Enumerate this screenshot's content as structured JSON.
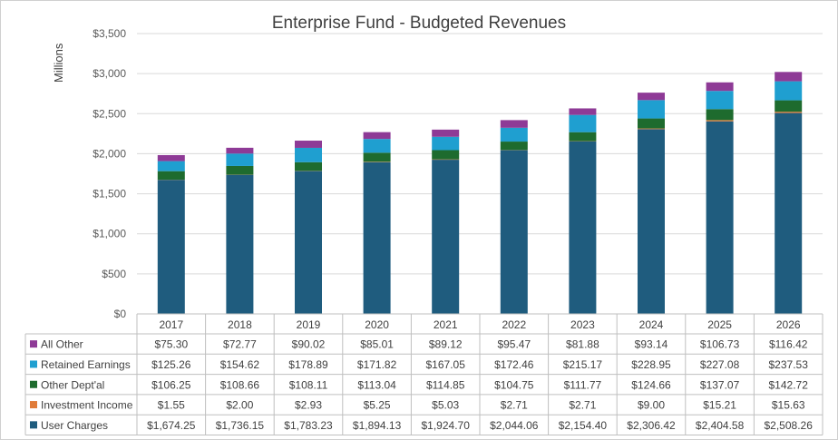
{
  "chart_data": {
    "type": "bar",
    "stacked": true,
    "title": "Enterprise Fund - Budgeted Revenues",
    "ylabel": "Millions",
    "ylim": [
      0,
      3500
    ],
    "yticks": [
      "$0",
      "$500",
      "$1,000",
      "$1,500",
      "$2,000",
      "$2,500",
      "$3,000",
      "$3,500"
    ],
    "ytick_values": [
      0,
      500,
      1000,
      1500,
      2000,
      2500,
      3000,
      3500
    ],
    "categories": [
      "2017",
      "2018",
      "2019",
      "2020",
      "2021",
      "2022",
      "2023",
      "2024",
      "2025",
      "2026"
    ],
    "legend_position": "data-table-left",
    "series": [
      {
        "name": "User Charges",
        "color": "#1f5c7e",
        "values": [
          1674.25,
          1736.15,
          1783.23,
          1894.13,
          1924.7,
          2044.06,
          2154.4,
          2306.42,
          2404.58,
          2508.26
        ],
        "labels": [
          "$1,674.25",
          "$1,736.15",
          "$1,783.23",
          "$1,894.13",
          "$1,924.70",
          "$2,044.06",
          "$2,154.40",
          "$2,306.42",
          "$2,404.58",
          "$2,508.26"
        ]
      },
      {
        "name": "Investment Income",
        "color": "#e07b39",
        "values": [
          1.55,
          2.0,
          2.93,
          5.25,
          5.03,
          2.71,
          2.71,
          9.0,
          15.21,
          15.63
        ],
        "labels": [
          "$1.55",
          "$2.00",
          "$2.93",
          "$5.25",
          "$5.03",
          "$2.71",
          "$2.71",
          "$9.00",
          "$15.21",
          "$15.63"
        ]
      },
      {
        "name": "Other Dept'al",
        "color": "#1e6b2e",
        "values": [
          106.25,
          108.66,
          108.11,
          113.04,
          114.85,
          104.75,
          111.77,
          124.66,
          137.07,
          142.72
        ],
        "labels": [
          "$106.25",
          "$108.66",
          "$108.11",
          "$113.04",
          "$114.85",
          "$104.75",
          "$111.77",
          "$124.66",
          "$137.07",
          "$142.72"
        ]
      },
      {
        "name": "Retained Earnings",
        "color": "#1f9fd0",
        "values": [
          125.26,
          154.62,
          178.89,
          171.82,
          167.05,
          172.46,
          215.17,
          228.95,
          227.08,
          237.53
        ],
        "labels": [
          "$125.26",
          "$154.62",
          "$178.89",
          "$171.82",
          "$167.05",
          "$172.46",
          "$215.17",
          "$228.95",
          "$227.08",
          "$237.53"
        ]
      },
      {
        "name": "All Other",
        "color": "#8e3a96",
        "values": [
          75.3,
          72.77,
          90.02,
          85.01,
          89.12,
          95.47,
          81.88,
          93.14,
          106.73,
          116.42
        ],
        "labels": [
          "$75.30",
          "$72.77",
          "$90.02",
          "$85.01",
          "$89.12",
          "$95.47",
          "$81.88",
          "$93.14",
          "$106.73",
          "$116.42"
        ]
      }
    ]
  }
}
